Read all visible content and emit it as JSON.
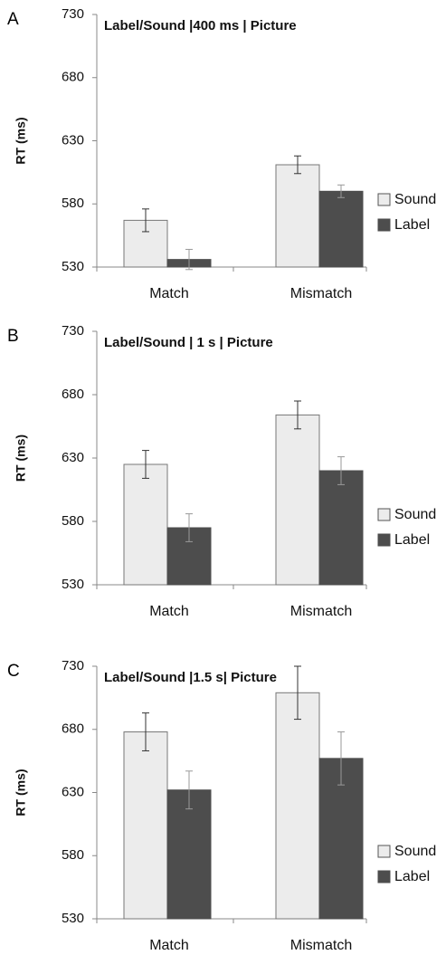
{
  "chart_data": [
    {
      "type": "bar",
      "panel": "A",
      "title": "Label/Sound |400 ms | Picture",
      "ylabel": "RT (ms)",
      "xlabel": "",
      "ylim": [
        530,
        730
      ],
      "yticks": [
        530,
        580,
        630,
        680,
        730
      ],
      "categories": [
        "Match",
        "Mismatch"
      ],
      "series": [
        {
          "name": "Sound",
          "color": "#ececec",
          "values": [
            567,
            611
          ],
          "errors": [
            9,
            7
          ]
        },
        {
          "name": "Label",
          "color": "#4d4d4d",
          "values": [
            536,
            590
          ],
          "errors": [
            8,
            5
          ]
        }
      ],
      "legend": "right",
      "grid": false
    },
    {
      "type": "bar",
      "panel": "B",
      "title": "Label/Sound | 1 s | Picture",
      "ylabel": "RT (ms)",
      "xlabel": "",
      "ylim": [
        530,
        730
      ],
      "yticks": [
        530,
        580,
        630,
        680,
        730
      ],
      "categories": [
        "Match",
        "Mismatch"
      ],
      "series": [
        {
          "name": "Sound",
          "color": "#ececec",
          "values": [
            625,
            664
          ],
          "errors": [
            11,
            11
          ]
        },
        {
          "name": "Label",
          "color": "#4d4d4d",
          "values": [
            575,
            620
          ],
          "errors": [
            11,
            11
          ]
        }
      ],
      "legend": "right",
      "grid": false
    },
    {
      "type": "bar",
      "panel": "C",
      "title": "Label/Sound |1.5 s| Picture",
      "ylabel": "RT (ms)",
      "xlabel": "",
      "ylim": [
        530,
        730
      ],
      "yticks": [
        530,
        580,
        630,
        680,
        730
      ],
      "categories": [
        "Match",
        "Mismatch"
      ],
      "series": [
        {
          "name": "Sound",
          "color": "#ececec",
          "values": [
            678,
            709
          ],
          "errors": [
            15,
            21
          ]
        },
        {
          "name": "Label",
          "color": "#4d4d4d",
          "values": [
            632,
            657
          ],
          "errors": [
            15,
            21
          ]
        }
      ],
      "legend": "right",
      "grid": false
    }
  ]
}
